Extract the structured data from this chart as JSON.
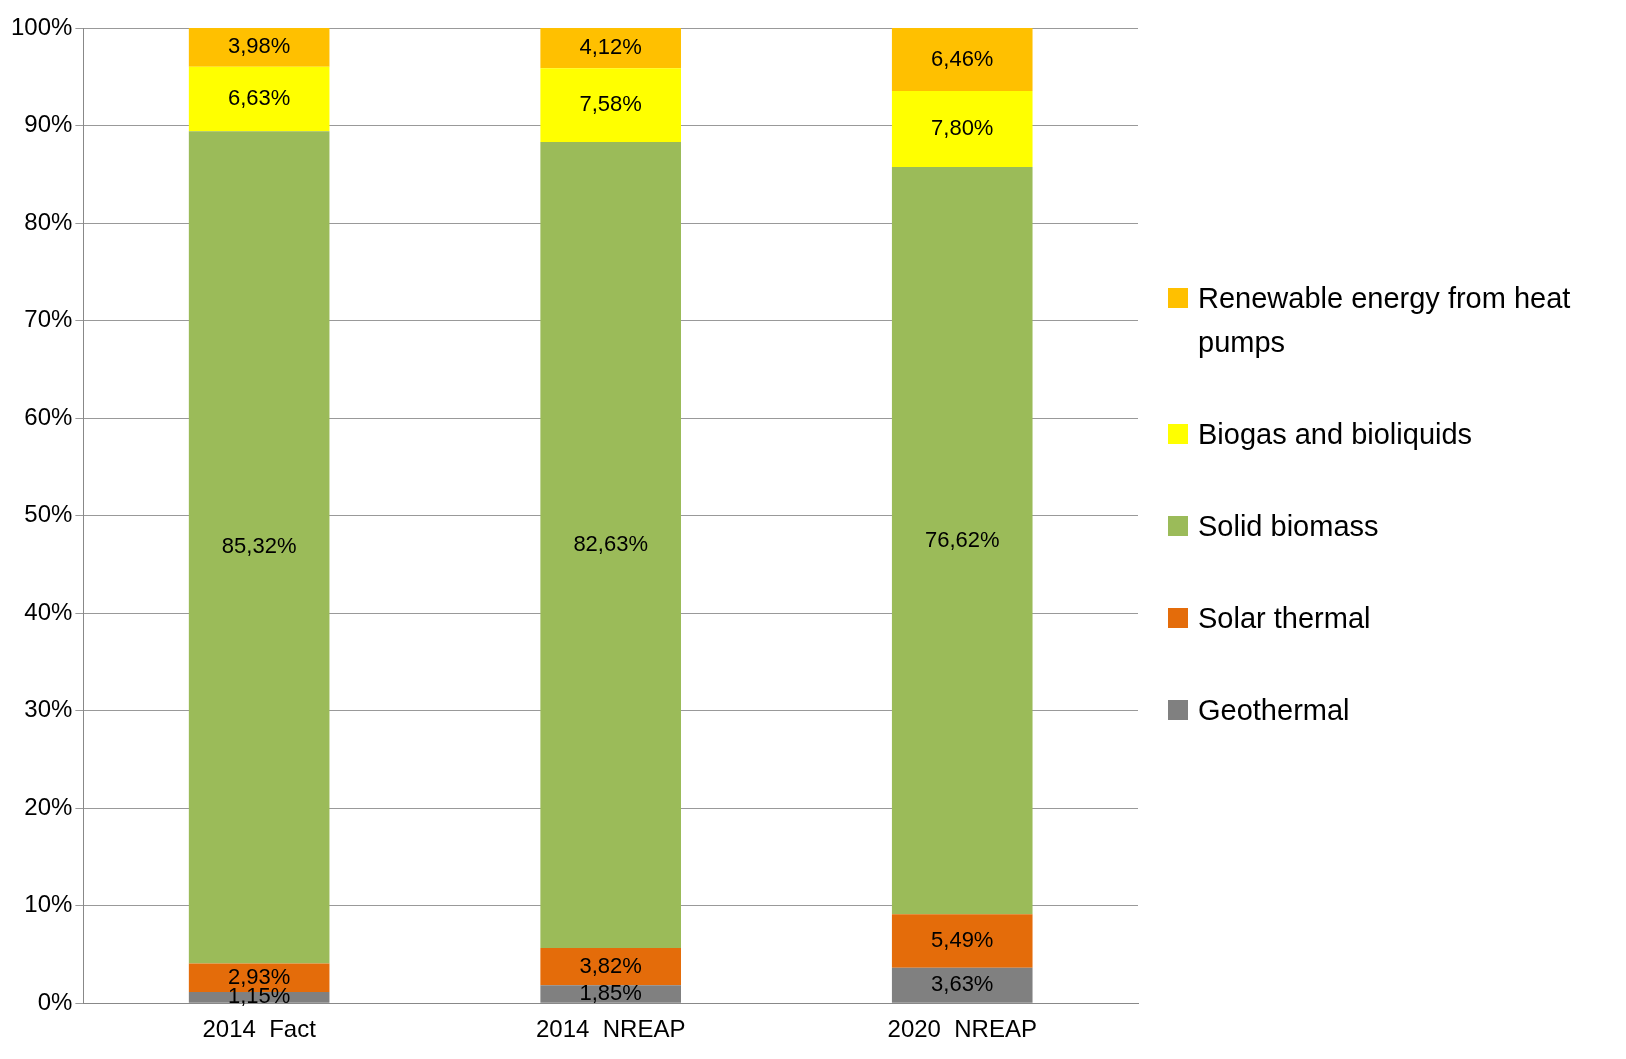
{
  "chart_data": {
    "type": "bar",
    "stacked": true,
    "categories": [
      "2014  Fact",
      "2014  NREAP",
      "2020  NREAP"
    ],
    "series": [
      {
        "name": "Geothermal",
        "color": "#808080",
        "values": [
          1.15,
          1.85,
          3.63
        ],
        "value_labels": [
          "1,15%",
          "1,85%",
          "3,63%"
        ]
      },
      {
        "name": "Solar thermal",
        "color": "#e46c0a",
        "values": [
          2.93,
          3.82,
          5.49
        ],
        "value_labels": [
          "2,93%",
          "3,82%",
          "5,49%"
        ]
      },
      {
        "name": "Solid biomass",
        "color": "#9bbb59",
        "values": [
          85.32,
          82.63,
          76.62
        ],
        "value_labels": [
          "85,32%",
          "82,63%",
          "76,62%"
        ]
      },
      {
        "name": "Biogas and bioliquids",
        "color": "#ffff00",
        "values": [
          6.63,
          7.58,
          7.8
        ],
        "value_labels": [
          "6,63%",
          "7,58%",
          "7,80%"
        ]
      },
      {
        "name": "Renewable energy from heat pumps",
        "color": "#ffc000",
        "values": [
          3.98,
          4.12,
          6.46
        ],
        "value_labels": [
          "3,98%",
          "4,12%",
          "6,46%"
        ]
      }
    ],
    "ylim": [
      0,
      100
    ],
    "yticks": [
      {
        "value": 0,
        "label": "0%"
      },
      {
        "value": 10,
        "label": "10%"
      },
      {
        "value": 20,
        "label": "20%"
      },
      {
        "value": 30,
        "label": "30%"
      },
      {
        "value": 40,
        "label": "40%"
      },
      {
        "value": 50,
        "label": "50%"
      },
      {
        "value": 60,
        "label": "60%"
      },
      {
        "value": 70,
        "label": "70%"
      },
      {
        "value": 80,
        "label": "80%"
      },
      {
        "value": 90,
        "label": "90%"
      },
      {
        "value": 100,
        "label": "100%"
      }
    ],
    "grid": "y",
    "legend": "right"
  }
}
